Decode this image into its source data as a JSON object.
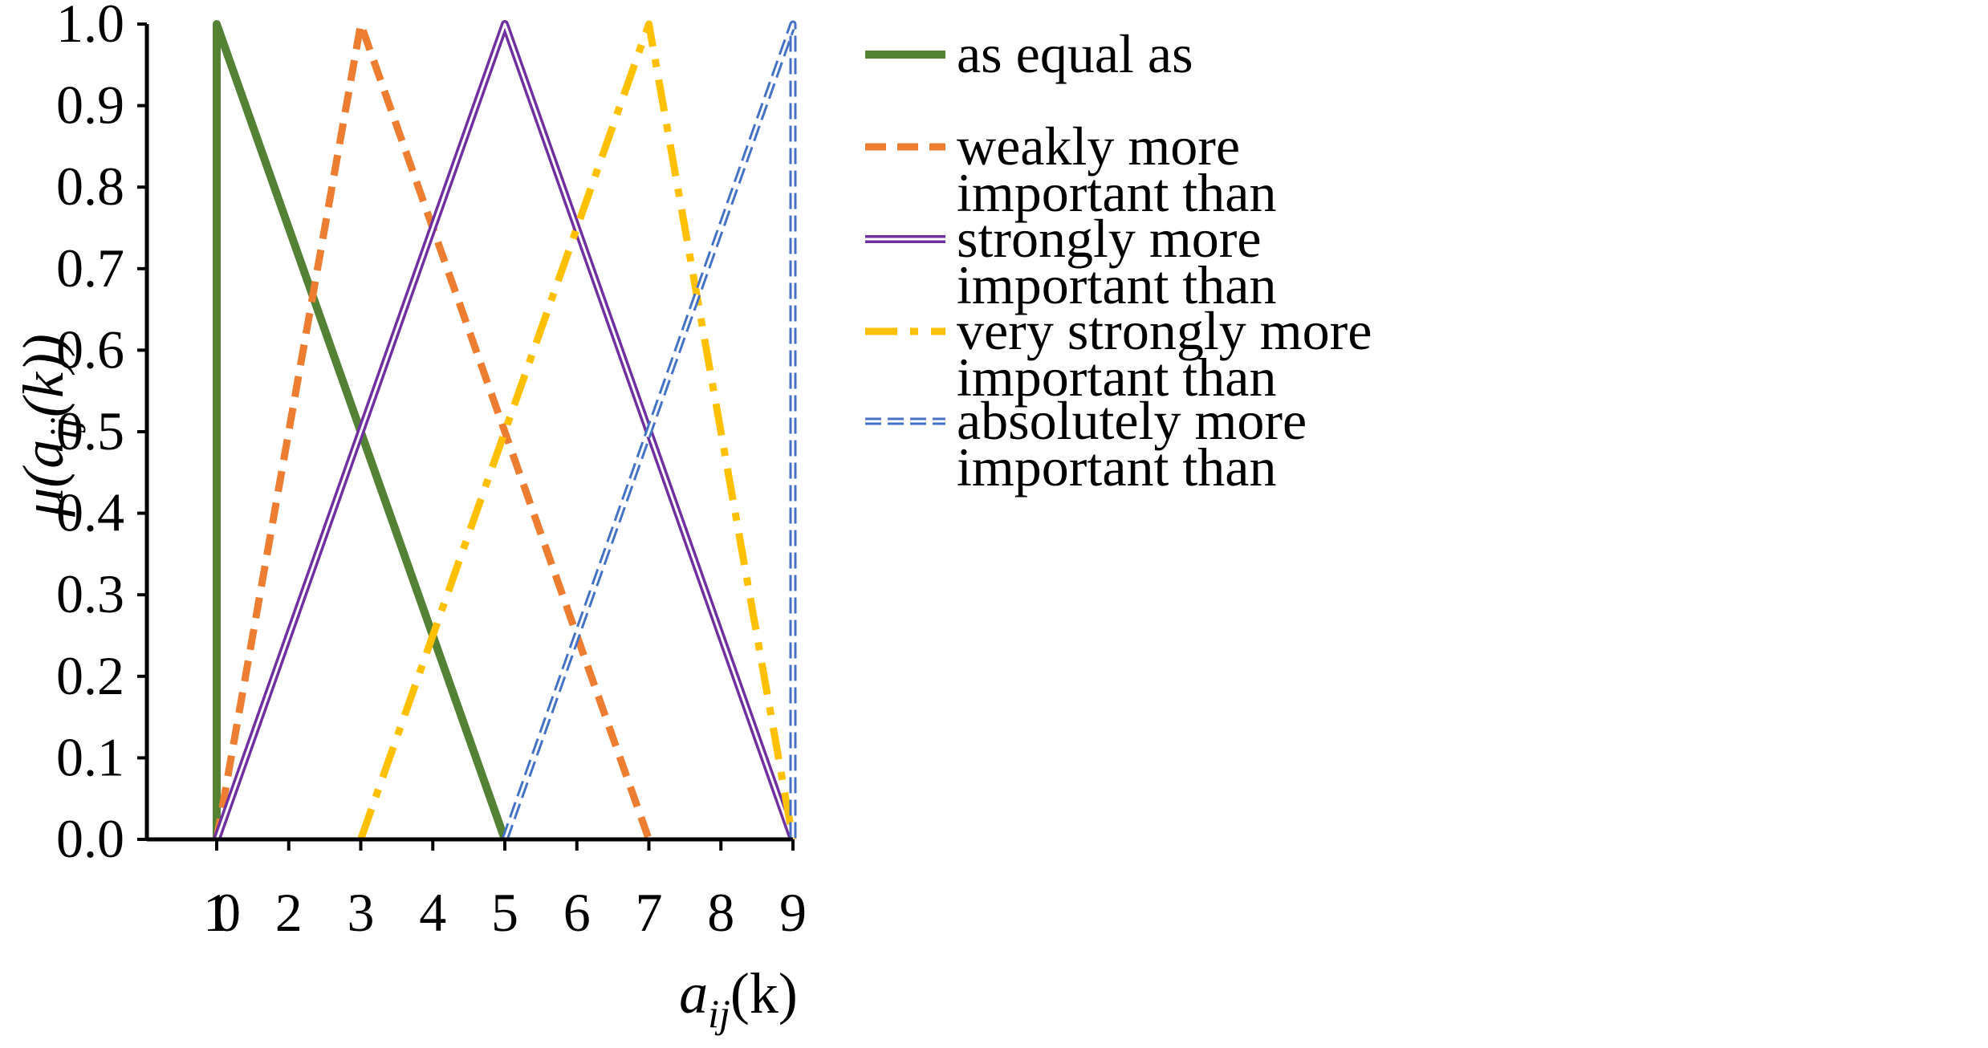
{
  "chart_data": {
    "type": "line",
    "xlabel": "a_ij(k)",
    "ylabel": "μ(a_ij(k))",
    "xlim": [
      0,
      9
    ],
    "ylim": [
      0,
      1
    ],
    "x_ticks": [
      "0",
      "1",
      "2",
      "3",
      "4",
      "5",
      "6",
      "7",
      "8",
      "9"
    ],
    "y_ticks": [
      "0.0",
      "0.1",
      "0.2",
      "0.3",
      "0.4",
      "0.5",
      "0.6",
      "0.7",
      "0.8",
      "0.9",
      "1.0"
    ],
    "grid": false,
    "legend_position": "right",
    "series": [
      {
        "name": "as equal as",
        "style": "solid-thick",
        "color": "#548235",
        "points": [
          [
            1,
            0
          ],
          [
            1,
            1
          ],
          [
            5,
            0
          ]
        ]
      },
      {
        "name": "weakly more important than",
        "style": "dash",
        "color": "#ED7D31",
        "points": [
          [
            1,
            0
          ],
          [
            3,
            1
          ],
          [
            7,
            0
          ]
        ]
      },
      {
        "name": "strongly more important than",
        "style": "double",
        "color": "#7030A0",
        "points": [
          [
            1,
            0
          ],
          [
            5,
            1
          ],
          [
            9,
            0
          ]
        ]
      },
      {
        "name": "very strongly more important than",
        "style": "dashdot",
        "color": "#FFC000",
        "points": [
          [
            3,
            0
          ],
          [
            7,
            1
          ],
          [
            9,
            0
          ]
        ]
      },
      {
        "name": "absolutely more important than",
        "style": "double-dash",
        "color": "#4472C4",
        "points": [
          [
            5,
            0
          ],
          [
            9,
            1
          ],
          [
            9,
            0
          ]
        ]
      }
    ]
  },
  "axis_label_parts": {
    "x": {
      "base": "a",
      "sub": "ij",
      "arg": "(k)"
    },
    "y": {
      "prefix": "μ(",
      "base": "a",
      "sub": "ij",
      "arg": "(k))"
    }
  },
  "legend_lines": [
    [
      "as equal as"
    ],
    [
      "weakly more",
      "important than"
    ],
    [
      "strongly more",
      "important than"
    ],
    [
      "very strongly more",
      "important than"
    ],
    [
      "absolutely more",
      "important than"
    ]
  ]
}
